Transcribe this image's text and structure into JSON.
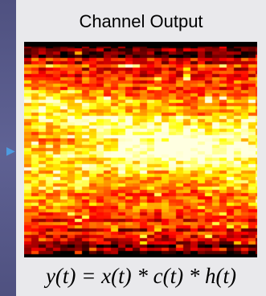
{
  "title": "Channel Output",
  "equation": "y(t) = x(t) * c(t) * h(t)",
  "icons": {
    "arrow": "arrow-right-icon"
  },
  "colors": {
    "background": "#5a5c8c",
    "panel": "#e9e9ec",
    "arrow": "#4d9be0",
    "heatmap_low": "#000000",
    "heatmap_mid": "#b02010",
    "heatmap_high": "#ffe080"
  }
}
